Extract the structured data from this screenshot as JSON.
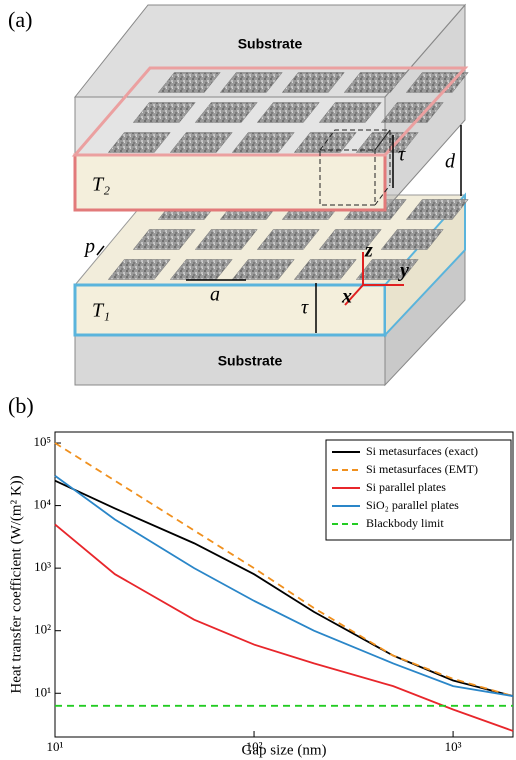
{
  "diagram": {
    "panel_label": "(a)",
    "top_substrate": "Substrate",
    "bottom_substrate": "Substrate",
    "top_slab": "T₂",
    "bottom_slab": "T₁",
    "top_thickness": "τ",
    "bottom_thickness": "τ",
    "gap": "d",
    "period_gap": "p",
    "patch_size": "a",
    "axis_x": "x",
    "axis_y": "y",
    "axis_z": "z"
  },
  "chart_data": {
    "type": "line",
    "panel_label": "(b)",
    "x_label": "Gap size (nm)",
    "y_label": "Heat transfer coefficient (W/(m² K))",
    "log_x": true,
    "log_y": true,
    "legend": "upper right",
    "x": [
      10,
      20,
      50,
      100,
      200,
      500,
      1000,
      2000
    ],
    "xlim": [
      10,
      2000
    ],
    "xticks": [
      {
        "value": 10,
        "label": "10¹"
      },
      {
        "value": 100,
        "label": "10²"
      },
      {
        "value": 1000,
        "label": "10³"
      }
    ],
    "ylim": [
      2,
      150000
    ],
    "yticks": [
      {
        "value": 10,
        "label": "10¹"
      },
      {
        "value": 100,
        "label": "10²"
      },
      {
        "value": 1000,
        "label": "10³"
      },
      {
        "value": 10000,
        "label": "10⁴"
      },
      {
        "value": 100000,
        "label": "10⁵"
      }
    ],
    "series": [
      {
        "name": "Si metasurfaces (exact)",
        "color": "#000000",
        "dash": false,
        "values": [
          25000,
          9000,
          2500,
          800,
          200,
          40,
          16,
          9
        ]
      },
      {
        "name": "Si metasurfaces (EMT)",
        "color": "#f0901e",
        "dash": true,
        "values": [
          100000,
          25000,
          4000,
          1000,
          230,
          40,
          17,
          9
        ]
      },
      {
        "name": "Si parallel plates",
        "color": "#e8262b",
        "dash": false,
        "values": [
          5000,
          800,
          150,
          60,
          30,
          13,
          5.5,
          2.5
        ]
      },
      {
        "name": "SiO₂ parallel plates",
        "color": "#2a86c8",
        "dash": false,
        "values": [
          30000,
          6000,
          1000,
          300,
          100,
          30,
          13,
          9
        ]
      },
      {
        "name": "Blackbody limit",
        "color": "#22cc22",
        "dash": true,
        "values": [
          6.3,
          6.3,
          6.3,
          6.3,
          6.3,
          6.3,
          6.3,
          6.3
        ]
      }
    ]
  }
}
